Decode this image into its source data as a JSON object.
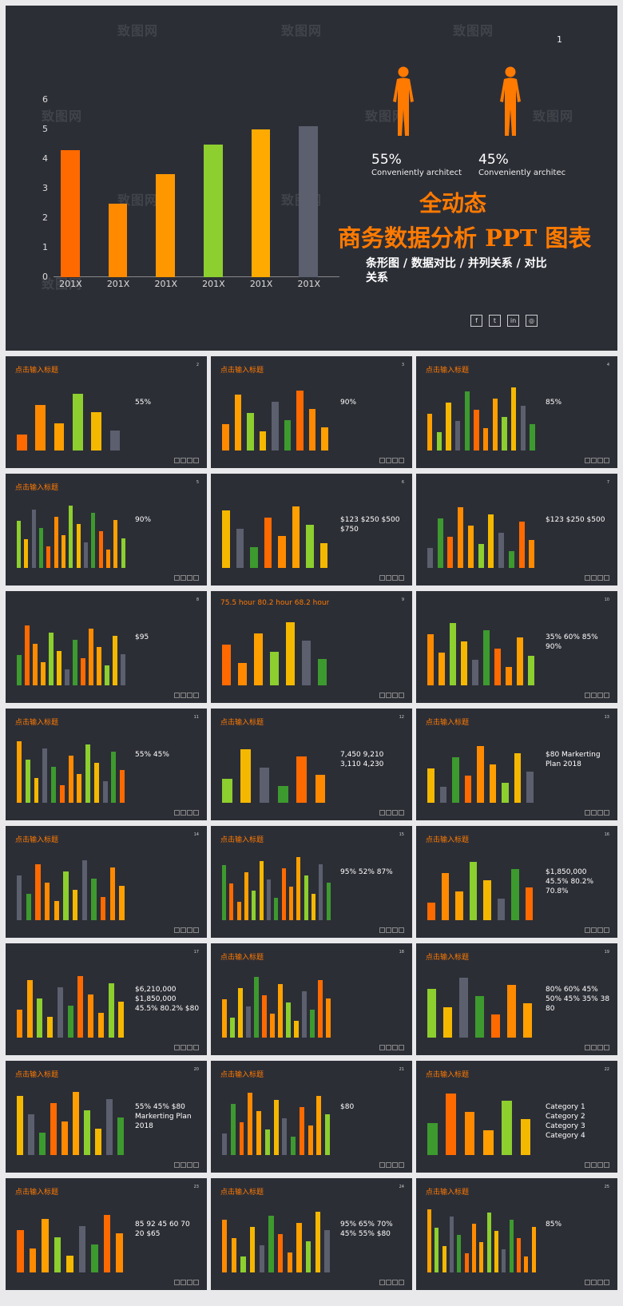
{
  "hero": {
    "page_number": "1",
    "title_line1": "全动态",
    "title_line2": "商务数据分析 PPT 图表",
    "subtitle": "条形图 / 数据对比 / 并列关系 / 对比关系",
    "stats": [
      {
        "value": "55%",
        "label": "Conveniently architect"
      },
      {
        "value": "45%",
        "label": "Conveniently architec"
      }
    ],
    "social_icons": [
      "facebook-icon",
      "twitter-icon",
      "linkedin-icon",
      "instagram-icon"
    ],
    "watermark": "致图网"
  },
  "chart_data": {
    "type": "bar",
    "categories": [
      "201X",
      "201X",
      "201X",
      "201X",
      "201X",
      "201X"
    ],
    "values": [
      4.3,
      2.5,
      3.5,
      4.5,
      5.0,
      5.1
    ],
    "colors": [
      "#ff6a00",
      "#ff8a00",
      "#ff9800",
      "#8ccf2e",
      "#ffaa00",
      "#5b5f6e"
    ],
    "yticks": [
      0,
      1,
      2,
      3,
      4,
      5,
      6
    ],
    "ylim": [
      0,
      6
    ],
    "title": "",
    "xlabel": "",
    "ylabel": ""
  },
  "thumbnails": [
    {
      "title": "点击输入标题",
      "big": "55%",
      "num": "2"
    },
    {
      "title": "点击输入标题",
      "big": "90%",
      "num": "3"
    },
    {
      "title": "点击输入标题",
      "big": "85%",
      "num": "4"
    },
    {
      "title": "点击输入标题",
      "big": "90%",
      "num": "5"
    },
    {
      "title": "",
      "big": "$123  $250  $500  $750",
      "num": "6"
    },
    {
      "title": "",
      "big": "$123  $250  $500",
      "num": "7"
    },
    {
      "title": "",
      "big": "$95",
      "num": "8"
    },
    {
      "title": "75.5 hour  80.2 hour  68.2 hour",
      "big": "",
      "num": "9"
    },
    {
      "title": "",
      "big": "35%  60%  85%  90%",
      "num": "10"
    },
    {
      "title": "点击输入标题",
      "big": "55%  45%",
      "num": "11"
    },
    {
      "title": "点击输入标题",
      "big": "7,450  9,210  3,110  4,230",
      "num": "12"
    },
    {
      "title": "点击输入标题",
      "big": "$80  Markerting Plan 2018",
      "num": "13"
    },
    {
      "title": "点击输入标题",
      "big": "",
      "num": "14"
    },
    {
      "title": "点击输入标题",
      "big": "95%  52%  87%",
      "num": "15"
    },
    {
      "title": "点击输入标题",
      "big": "$1,850,000  45.5%  80.2%  70.8%",
      "num": "16"
    },
    {
      "title": "",
      "big": "$6,210,000  $1,850,000  45.5%  80.2%  $80",
      "num": "17"
    },
    {
      "title": "点击输入标题",
      "big": "",
      "num": "18"
    },
    {
      "title": "点击输入标题",
      "big": "80%  60%  45%  50%  45%  35%  38  80",
      "num": "19"
    },
    {
      "title": "点击输入标题",
      "big": "55%  45%  $80  Markerting Plan 2018",
      "num": "20"
    },
    {
      "title": "点击输入标题",
      "big": "$80",
      "num": "21"
    },
    {
      "title": "点击输入标题",
      "big": "Category 1  Category 2  Category 3  Category 4",
      "num": "22"
    },
    {
      "title": "点击输入标题",
      "big": "85  92  45  60  70  20  $65",
      "num": "23"
    },
    {
      "title": "点击输入标题",
      "big": "95%  65%  70%  45%  55%  $80",
      "num": "24"
    },
    {
      "title": "点击输入标题",
      "big": "85%",
      "num": "25"
    }
  ]
}
